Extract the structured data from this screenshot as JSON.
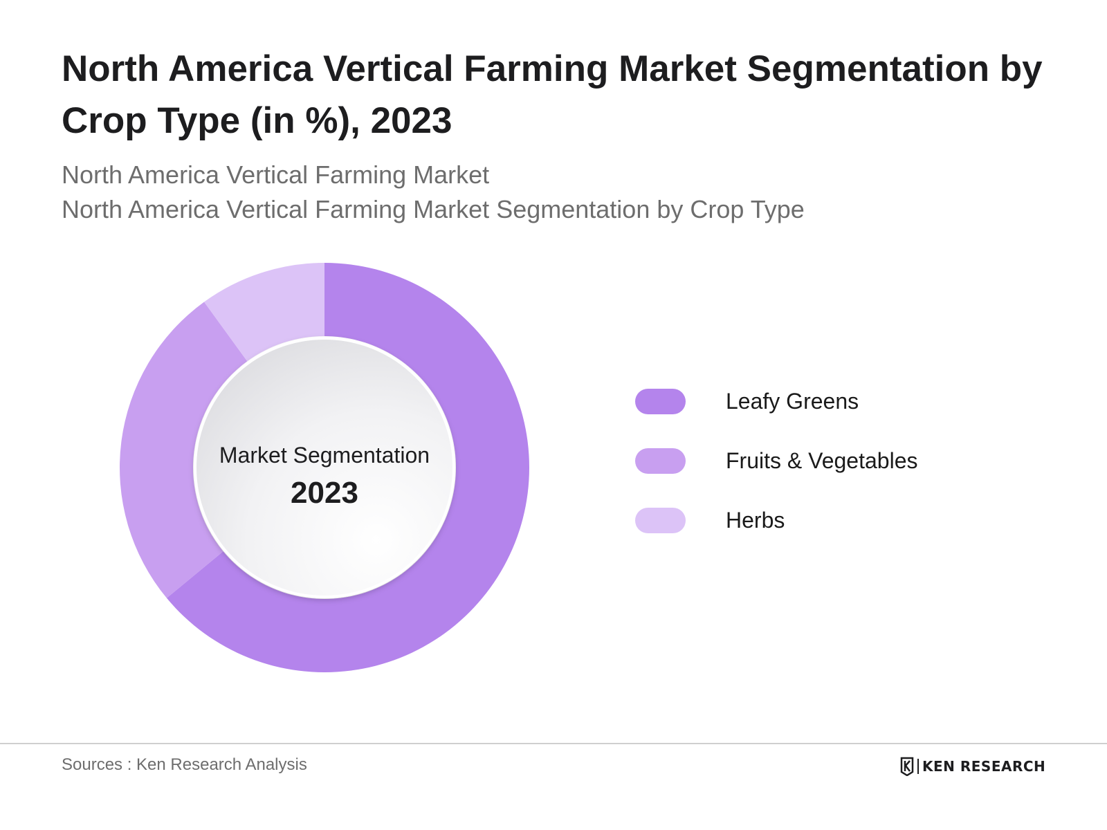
{
  "header": {
    "title": "North America Vertical Farming Market Segmentation by Crop Type (in %), 2023",
    "subtitle_line1": "North America Vertical Farming Market",
    "subtitle_line2": "North America Vertical Farming Market Segmentation by Crop Type"
  },
  "chart_data": {
    "type": "pie",
    "variant": "donut",
    "title": "North America Vertical Farming Market Segmentation by Crop Type (in %), 2023",
    "center_label": "Market Segmentation",
    "center_year": "2023",
    "categories": [
      "Leafy Greens",
      "Fruits & Vegetables",
      "Herbs"
    ],
    "values": [
      64,
      26,
      10
    ],
    "colors": [
      "#b484ec",
      "#c89ff0",
      "#dcc3f7"
    ],
    "legend_position": "right"
  },
  "footer": {
    "sources": "Sources : Ken Research Analysis",
    "brand": "KEN RESEARCH"
  }
}
